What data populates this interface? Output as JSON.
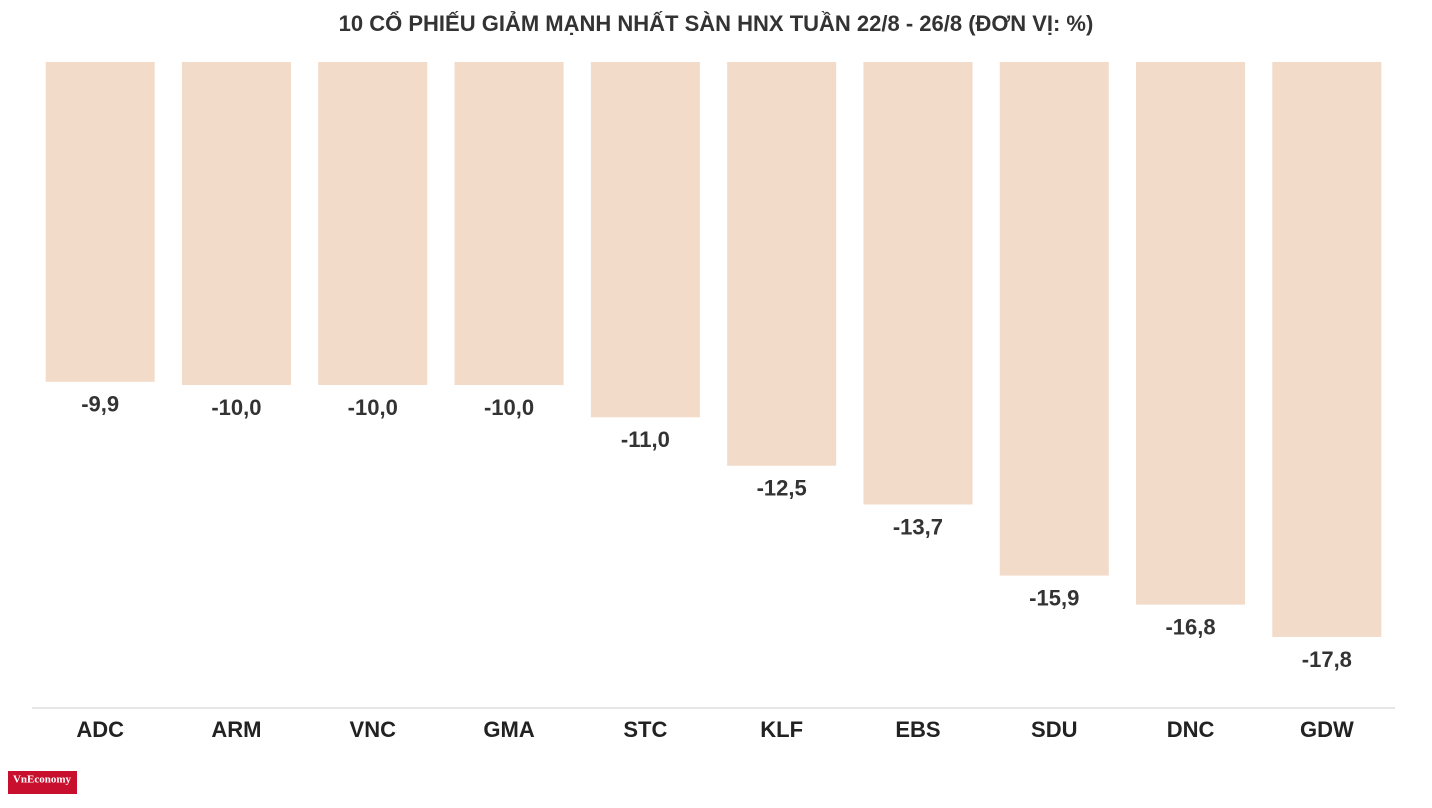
{
  "chart_data": {
    "type": "bar",
    "title": "10 CỔ PHIẾU GIẢM MẠNH NHẤT SÀN HNX TUẦN 22/8 - 26/8 (ĐƠN VỊ: %)",
    "categories": [
      "ADC",
      "ARM",
      "VNC",
      "GMA",
      "STC",
      "KLF",
      "EBS",
      "SDU",
      "DNC",
      "GDW"
    ],
    "values": [
      -9.9,
      -10.0,
      -10.0,
      -10.0,
      -11.0,
      -12.5,
      -13.7,
      -15.9,
      -16.8,
      -17.8
    ],
    "value_labels": [
      "-9,9",
      "-10,0",
      "-10,0",
      "-10,0",
      "-11,0",
      "-12,5",
      "-13,7",
      "-15,9",
      "-16,8",
      "-17,8"
    ],
    "color": "#f3dbc9",
    "ylim": [
      0,
      -20
    ],
    "grid": false
  },
  "logo": "VnEconomy"
}
